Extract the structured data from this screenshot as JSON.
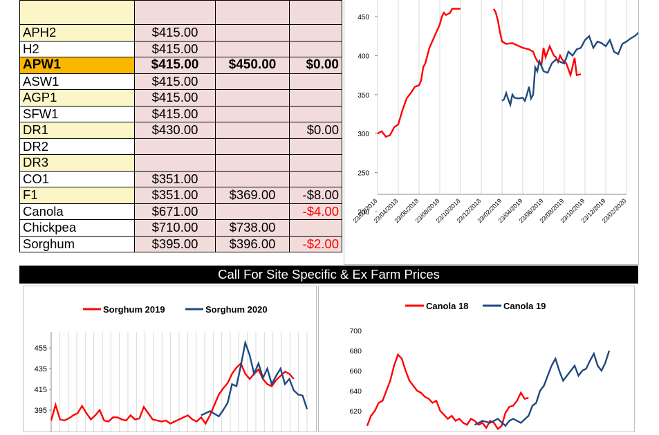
{
  "price_table": {
    "rows": [
      {
        "grade": "",
        "price1": "",
        "price2": "",
        "diff": "",
        "style": "yellow",
        "diff_neg": false,
        "top": true
      },
      {
        "grade": "APH2",
        "price1": "$415.00",
        "price2": "",
        "diff": "",
        "style": "yellow",
        "diff_neg": false
      },
      {
        "grade": "H2",
        "price1": "$415.00",
        "price2": "",
        "diff": "",
        "style": "white",
        "diff_neg": false
      },
      {
        "grade": "APW1",
        "price1": "$415.00",
        "price2": "$450.00",
        "diff": "$0.00",
        "style": "highlight",
        "diff_neg": false
      },
      {
        "grade": "ASW1",
        "price1": "$415.00",
        "price2": "",
        "diff": "",
        "style": "white",
        "diff_neg": false
      },
      {
        "grade": "AGP1",
        "price1": "$415.00",
        "price2": "",
        "diff": "",
        "style": "yellow",
        "diff_neg": false
      },
      {
        "grade": "SFW1",
        "price1": "$415.00",
        "price2": "",
        "diff": "",
        "style": "white",
        "diff_neg": false
      },
      {
        "grade": "DR1",
        "price1": "$430.00",
        "price2": "",
        "diff": "$0.00",
        "style": "yellow",
        "diff_neg": false
      },
      {
        "grade": "DR2",
        "price1": "",
        "price2": "",
        "diff": "",
        "style": "white",
        "diff_neg": false
      },
      {
        "grade": "DR3",
        "price1": "",
        "price2": "",
        "diff": "",
        "style": "yellow",
        "diff_neg": false
      },
      {
        "grade": "CO1",
        "price1": "$351.00",
        "price2": "",
        "diff": "",
        "style": "white",
        "diff_neg": false
      },
      {
        "grade": "F1",
        "price1": "$351.00",
        "price2": "$369.00",
        "diff": "-$8.00",
        "style": "yellow",
        "diff_neg": false
      },
      {
        "grade": "Canola",
        "price1": "$671.00",
        "price2": "",
        "diff": "-$4.00",
        "style": "white",
        "diff_neg": true
      },
      {
        "grade": "Chickpea",
        "price1": "$710.00",
        "price2": "$738.00",
        "diff": "",
        "style": "white",
        "diff_neg": false
      },
      {
        "grade": "Sorghum",
        "price1": "$395.00",
        "price2": "$396.00",
        "diff": "-$2.00",
        "style": "white",
        "diff_neg": true
      }
    ]
  },
  "banner": {
    "text": "Call For Site Specific & Ex Farm Prices"
  },
  "colors": {
    "red_series": "#ff0000",
    "blue_series": "#1f497d",
    "pink_cell": "#f2dcdb",
    "yellow_cell": "#fbf5c8",
    "highlight_cell": "#f9b700"
  },
  "chart_data": [
    {
      "type": "line",
      "title": "",
      "x_tick_labels": [
        "23/02/2018",
        "23/04/2018",
        "23/06/2018",
        "23/08/2018",
        "23/10/2018",
        "23/12/2018",
        "23/02/2019",
        "23/04/2019",
        "23/06/2019",
        "23/08/2019",
        "23/10/2019",
        "23/12/2019",
        "23/02/2020"
      ],
      "y_ticks": [
        "200",
        "250",
        "300",
        "350",
        "400",
        "450"
      ],
      "ylim": [
        200,
        450
      ],
      "grid": "vertical",
      "series": [
        {
          "name": "",
          "color": "red",
          "x": [
            0,
            0.2,
            0.4,
            0.6,
            0.8,
            1.0,
            1.2,
            1.4,
            1.6,
            1.8,
            2.0,
            2.1,
            2.2,
            2.3,
            2.5,
            3.0,
            3.1,
            3.2,
            3.3,
            3.5,
            3.6,
            3.7,
            3.8,
            3.9,
            4.0,
            4.0
          ],
          "y": [
            300,
            303,
            296,
            298,
            308,
            312,
            330,
            345,
            352,
            360,
            362,
            368,
            385,
            390,
            410,
            440,
            450,
            455,
            452,
            455,
            460,
            460,
            460,
            460,
            460,
            460
          ]
        },
        {
          "name": "",
          "color": "red",
          "x": [
            5.6,
            5.7,
            5.8,
            5.9,
            6.0,
            6.2,
            6.5,
            7.0,
            7.3,
            7.5,
            7.6,
            7.7,
            7.8,
            7.9,
            8.0,
            8.1,
            8.3,
            8.5,
            8.6,
            8.7,
            8.8,
            8.9,
            9.0,
            9.1,
            9.3,
            9.5,
            9.6,
            9.8
          ],
          "y": [
            460,
            455,
            445,
            430,
            418,
            415,
            416,
            410,
            408,
            405,
            398,
            393,
            390,
            388,
            410,
            398,
            412,
            400,
            398,
            392,
            400,
            395,
            392,
            390,
            375,
            397,
            375,
            376
          ]
        },
        {
          "name": "",
          "color": "blue",
          "x": [
            6.0,
            6.1,
            6.2,
            6.3,
            6.4,
            6.5,
            6.6,
            6.8,
            7.0,
            7.1,
            7.2,
            7.3,
            7.4,
            7.5,
            7.6,
            7.7,
            7.8,
            8.0,
            8.2,
            8.4,
            8.6,
            8.8,
            9.0,
            9.2,
            9.4,
            9.6,
            9.8,
            10.0,
            10.2,
            10.4,
            10.6,
            10.8,
            11.0,
            11.2,
            11.4,
            11.6,
            11.8,
            12.0,
            12.2,
            12.4,
            12.6,
            12.8,
            13.0
          ],
          "y": [
            342,
            344,
            352,
            344,
            337,
            350,
            346,
            345,
            346,
            342,
            350,
            360,
            345,
            350,
            385,
            380,
            393,
            380,
            378,
            390,
            395,
            392,
            390,
            405,
            400,
            408,
            410,
            420,
            425,
            410,
            418,
            416,
            412,
            420,
            405,
            402,
            415,
            418,
            422,
            425,
            430,
            415,
            420
          ]
        }
      ]
    },
    {
      "type": "line",
      "title": "",
      "legend": [
        "Sorghum 2019",
        "Sorghum 2020"
      ],
      "legend_placement": "top",
      "y_ticks": [
        "395",
        "415",
        "435",
        "455"
      ],
      "grid": "vertical",
      "series": [
        {
          "name": "Sorghum 2019",
          "color": "red",
          "x": [
            0,
            1,
            2,
            3,
            4,
            5,
            6,
            7,
            8,
            9,
            10,
            11,
            12,
            13,
            14,
            15,
            16,
            17,
            18,
            19,
            20,
            21,
            22,
            23,
            24,
            25,
            26,
            27,
            28,
            29,
            30,
            31,
            32,
            33,
            34,
            35,
            36,
            37,
            38,
            39,
            40,
            41,
            42,
            43,
            44,
            45,
            46,
            47,
            48,
            49,
            50,
            51,
            52,
            53,
            54,
            55
          ],
          "y": [
            385,
            400,
            386,
            385,
            387,
            390,
            392,
            399,
            392,
            386,
            390,
            395,
            385,
            384,
            388,
            388,
            386,
            385,
            390,
            386,
            387,
            398,
            392,
            386,
            385,
            384,
            385,
            382,
            384,
            386,
            388,
            390,
            386,
            384,
            388,
            382,
            390,
            400,
            410,
            416,
            421,
            430,
            436,
            440,
            430,
            425,
            430,
            434,
            425,
            420,
            418,
            424,
            428,
            432,
            430,
            425
          ]
        },
        {
          "name": "Sorghum 2020",
          "color": "blue",
          "x": [
            34,
            36,
            38,
            39,
            40,
            41,
            42,
            43,
            44,
            45,
            46,
            47,
            48,
            49,
            50,
            51,
            52,
            53,
            54,
            55,
            56,
            57,
            58
          ],
          "y": [
            390,
            394,
            389,
            395,
            402,
            420,
            418,
            438,
            460,
            448,
            430,
            440,
            426,
            435,
            420,
            428,
            435,
            420,
            425,
            414,
            410,
            409,
            396
          ]
        }
      ]
    },
    {
      "type": "line",
      "title": "",
      "legend": [
        "Canola 18",
        "Canola 19"
      ],
      "legend_placement": "top",
      "y_ticks": [
        "620",
        "640",
        "660",
        "680",
        "700"
      ],
      "grid": "none",
      "series": [
        {
          "name": "Canola 18",
          "color": "red",
          "x": [
            0,
            1,
            2,
            3,
            4,
            5,
            6,
            7,
            8,
            9,
            10,
            11,
            12,
            13,
            14,
            15,
            16,
            17,
            18,
            19,
            20,
            21,
            22,
            23,
            24,
            25,
            26,
            27,
            28,
            29,
            30,
            31,
            32,
            33,
            34,
            35,
            36,
            37,
            38,
            39,
            40,
            41,
            42
          ],
          "y": [
            605,
            615,
            620,
            628,
            630,
            640,
            650,
            665,
            676,
            672,
            660,
            650,
            645,
            640,
            638,
            634,
            632,
            628,
            630,
            620,
            616,
            612,
            615,
            610,
            612,
            608,
            606,
            612,
            610,
            606,
            608,
            603,
            610,
            608,
            602,
            605,
            618,
            624,
            625,
            630,
            638,
            632,
            633
          ]
        },
        {
          "name": "Canola 19",
          "color": "blue",
          "x": [
            28,
            30,
            32,
            34,
            36,
            37,
            38,
            40,
            42,
            43,
            44,
            45,
            46,
            47,
            48,
            49,
            50,
            51,
            52,
            53,
            54,
            55,
            56,
            57,
            58,
            59,
            60,
            61,
            62,
            63
          ],
          "y": [
            606,
            610,
            608,
            612,
            605,
            610,
            612,
            608,
            615,
            625,
            628,
            640,
            645,
            655,
            665,
            672,
            660,
            650,
            655,
            660,
            665,
            655,
            660,
            662,
            670,
            677,
            665,
            660,
            668,
            680
          ]
        }
      ]
    }
  ]
}
